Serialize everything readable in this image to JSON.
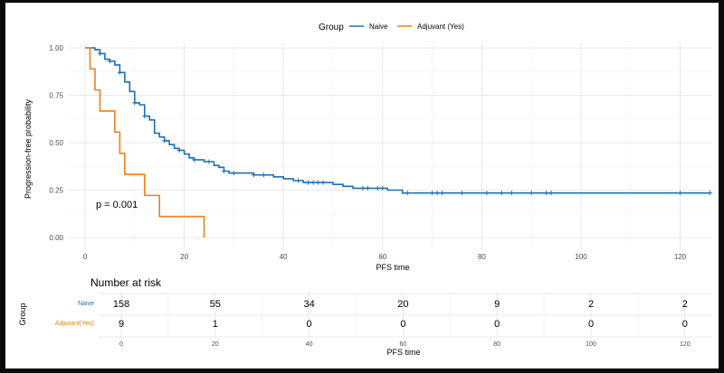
{
  "chart_data": [
    {
      "type": "line",
      "subtype": "kaplan-meier",
      "xlabel": "PFS time",
      "ylabel": "Progression-free probability",
      "xlim": [
        0,
        126
      ],
      "ylim": [
        0,
        1
      ],
      "x_ticks": [
        0,
        20,
        40,
        60,
        80,
        100,
        120
      ],
      "y_ticks": [
        "0.00",
        "0.25",
        "0.50",
        "0.75",
        "1.00"
      ],
      "grid": true,
      "legend_position": "top",
      "legend_title": "Group",
      "annotation": "p = 0.001",
      "series": [
        {
          "name": "Naive",
          "color": "#1f6fb4",
          "steps": [
            [
              0,
              1.0
            ],
            [
              2,
              0.99
            ],
            [
              3,
              0.97
            ],
            [
              4,
              0.94
            ],
            [
              5,
              0.93
            ],
            [
              6,
              0.91
            ],
            [
              7,
              0.87
            ],
            [
              8,
              0.82
            ],
            [
              9,
              0.77
            ],
            [
              10,
              0.71
            ],
            [
              11,
              0.7
            ],
            [
              12,
              0.64
            ],
            [
              13,
              0.62
            ],
            [
              14,
              0.55
            ],
            [
              15,
              0.53
            ],
            [
              16,
              0.51
            ],
            [
              17,
              0.49
            ],
            [
              18,
              0.47
            ],
            [
              19,
              0.46
            ],
            [
              20,
              0.44
            ],
            [
              21,
              0.42
            ],
            [
              22,
              0.41
            ],
            [
              24,
              0.4
            ],
            [
              26,
              0.38
            ],
            [
              27,
              0.37
            ],
            [
              28,
              0.35
            ],
            [
              29,
              0.34
            ],
            [
              34,
              0.33
            ],
            [
              36,
              0.33
            ],
            [
              38,
              0.32
            ],
            [
              40,
              0.31
            ],
            [
              42,
              0.3
            ],
            [
              44,
              0.29
            ],
            [
              50,
              0.28
            ],
            [
              52,
              0.27
            ],
            [
              54,
              0.26
            ],
            [
              58,
              0.26
            ],
            [
              61,
              0.25
            ],
            [
              62,
              0.25
            ],
            [
              64,
              0.235
            ],
            [
              126,
              0.235
            ]
          ],
          "censor_times": [
            3,
            5,
            7,
            10,
            12,
            16,
            19,
            22,
            25,
            28,
            30,
            34,
            36,
            43,
            45,
            46,
            47,
            48,
            56,
            57,
            59,
            60,
            65,
            70,
            71,
            72,
            76,
            81,
            84,
            86,
            90,
            93,
            94,
            120,
            126
          ]
        },
        {
          "name": "Adjuvant (Yes)",
          "color": "#f07f1e",
          "steps": [
            [
              0,
              1.0
            ],
            [
              1,
              0.889
            ],
            [
              2,
              0.778
            ],
            [
              3,
              0.667
            ],
            [
              6,
              0.556
            ],
            [
              7,
              0.444
            ],
            [
              8,
              0.333
            ],
            [
              12,
              0.222
            ],
            [
              15,
              0.111
            ],
            [
              24,
              0.0
            ]
          ],
          "censor_times": []
        }
      ]
    },
    {
      "type": "table",
      "title": "Number at risk",
      "ylabel": "Group",
      "xlabel": "PFS time",
      "x_ticks": [
        0,
        20,
        40,
        60,
        80,
        100,
        120
      ],
      "rows": [
        {
          "group": "Naive",
          "color": "#1f6fb4",
          "values": [
            "158",
            "55",
            "34",
            "20",
            "9",
            "2",
            "2"
          ]
        },
        {
          "group": "Adjuvant(Yes)",
          "color": "#f07f1e",
          "values": [
            "9",
            "1",
            "0",
            "0",
            "0",
            "0",
            "0"
          ]
        }
      ]
    }
  ]
}
